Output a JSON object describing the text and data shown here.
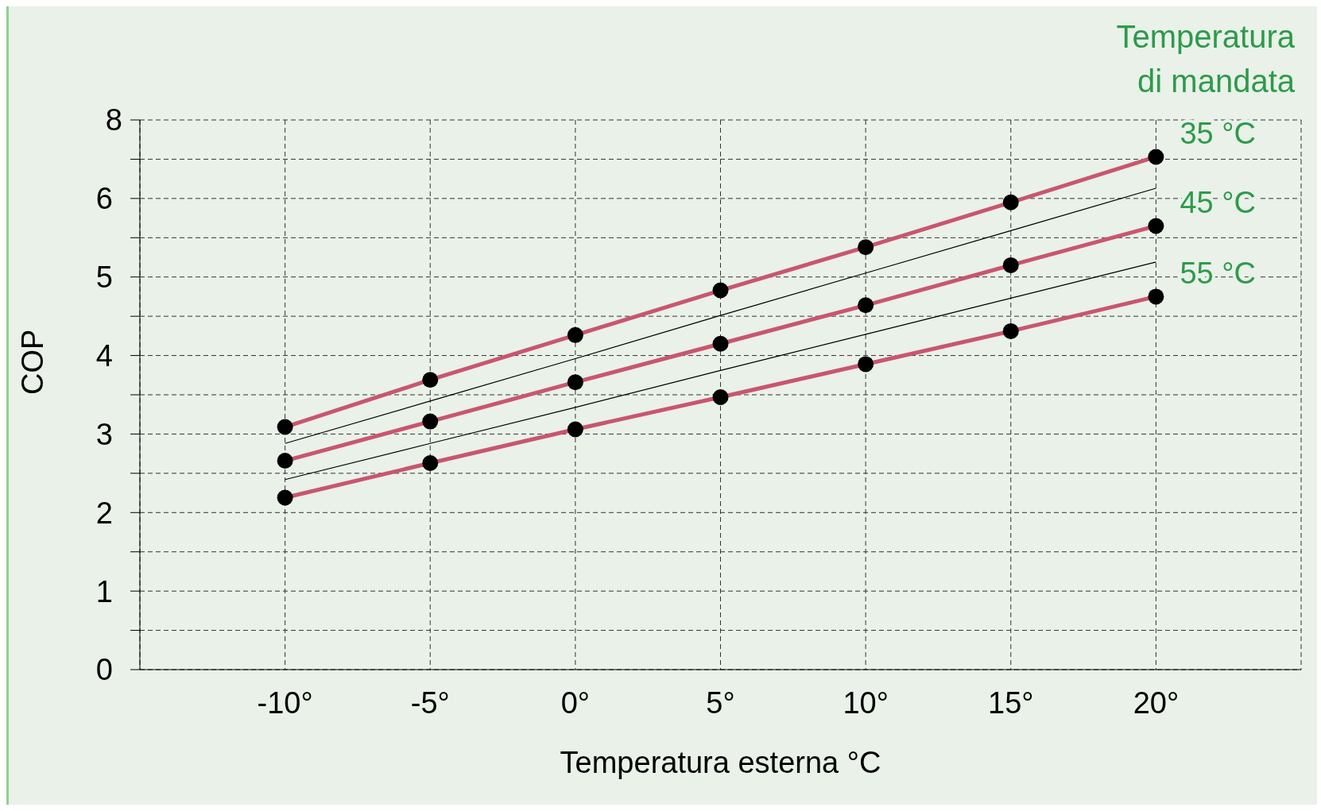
{
  "chart_data": {
    "type": "line",
    "xlabel": "Temperatura esterna °C",
    "ylabel": "COP",
    "legend_title": "Temperatura di mandata",
    "x": [
      -10,
      -5,
      0,
      5,
      10,
      15,
      20
    ],
    "series": [
      {
        "name": "35 °C",
        "color": "#c9566e",
        "values": [
          3.09,
          3.69,
          4.26,
          4.83,
          5.38,
          5.95,
          6.53
        ]
      },
      {
        "name": "45 °C",
        "color": "#c9566e",
        "values": [
          2.66,
          3.16,
          3.66,
          4.15,
          4.64,
          5.15,
          5.65
        ]
      },
      {
        "name": "55 °C",
        "color": "#c9566e",
        "values": [
          2.19,
          2.63,
          3.06,
          3.47,
          3.89,
          4.31,
          4.75
        ]
      },
      {
        "color": "#000000",
        "values": [
          2.88,
          3.42,
          3.96,
          4.51,
          5.05,
          5.59,
          6.13
        ],
        "marker": "none"
      },
      {
        "color": "#000000",
        "values": [
          2.42,
          2.88,
          3.34,
          3.81,
          4.27,
          4.73,
          5.19
        ],
        "marker": "none"
      }
    ],
    "xlim": [
      -15,
      25
    ],
    "xticks": [
      {
        "value": -10,
        "label": "-10°"
      },
      {
        "value": -5,
        "label": "-5°"
      },
      {
        "value": 0,
        "label": "0°"
      },
      {
        "value": 5,
        "label": "5°"
      },
      {
        "value": 10,
        "label": "10°"
      },
      {
        "value": 15,
        "label": "15°"
      },
      {
        "value": 20,
        "label": "20°"
      }
    ],
    "ylim": [
      0,
      7
    ],
    "yticks": [
      0,
      {
        "value": 0.5,
        "label": null
      },
      1,
      {
        "value": 1.5,
        "label": null
      },
      2,
      {
        "value": 2.5,
        "label": null
      },
      3,
      {
        "value": 3.5,
        "label": null
      },
      4,
      {
        "value": 4.5,
        "label": null
      },
      5,
      {
        "value": 5.5,
        "label": null
      },
      6,
      {
        "value": 6.5,
        "label": null
      },
      {
        "value": 7,
        "label": null
      }
    ],
    "annotations": [
      "8"
    ],
    "grid": true,
    "marker": "circle"
  }
}
